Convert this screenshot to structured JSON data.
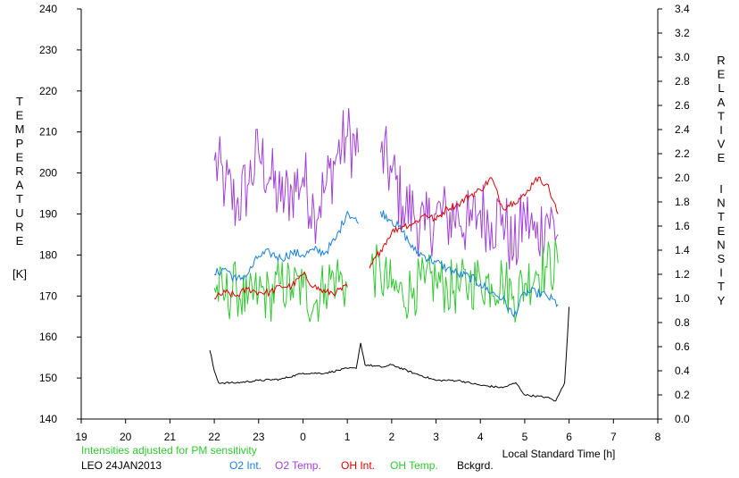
{
  "chart_data": {
    "type": "line",
    "title": "",
    "left_axis": {
      "label_letters": [
        "T",
        "E",
        "M",
        "P",
        "E",
        "R",
        "A",
        "T",
        "U",
        "R",
        "E"
      ],
      "unit": "[K]",
      "ylim": [
        140,
        240
      ],
      "ticks": [
        "140",
        "150",
        "160",
        "170",
        "180",
        "190",
        "200",
        "210",
        "220",
        "230",
        "240"
      ]
    },
    "right_axis": {
      "label_letters_1": [
        "R",
        "E",
        "L",
        "A",
        "T",
        "I",
        "V",
        "E"
      ],
      "label_letters_2": [
        "I",
        "N",
        "T",
        "E",
        "N",
        "S",
        "I",
        "T",
        "Y"
      ],
      "ylim": [
        0.0,
        3.4
      ],
      "ticks": [
        "0.0",
        "0.2",
        "0.4",
        "0.6",
        "0.8",
        "1.0",
        "1.2",
        "1.4",
        "1.6",
        "1.8",
        "2.0",
        "2.2",
        "2.4",
        "2.6",
        "2.8",
        "3.0",
        "3.2",
        "3.4"
      ]
    },
    "x_axis": {
      "label": "Local Standard Time [h]",
      "ticks": [
        "19",
        "20",
        "21",
        "22",
        "23",
        "0",
        "1",
        "2",
        "3",
        "4",
        "5",
        "6",
        "7",
        "8"
      ]
    },
    "note": "Intensities adjusted for PM sensitivity",
    "station": "LEO 24JAN2013",
    "legend": [
      {
        "label": "O2 Int.",
        "color": "#1a7fe0"
      },
      {
        "label": "O2 Temp.",
        "color": "#a040d8"
      },
      {
        "label": "OH Int.",
        "color": "#e00000"
      },
      {
        "label": "OH Temp.",
        "color": "#30c830"
      },
      {
        "label": "Bckgrd.",
        "color": "#000000"
      }
    ],
    "series": [
      {
        "key": "o2_temp",
        "axis": "left",
        "color": "#a040d8",
        "x": [
          22.0,
          22.25,
          22.5,
          22.75,
          23.0,
          23.25,
          23.5,
          23.75,
          24.0,
          24.25,
          24.5,
          24.75,
          25.0,
          25.25,
          25.5,
          25.75,
          26.0,
          26.25,
          26.5,
          26.75,
          27.0,
          27.25,
          27.5,
          27.75,
          28.0,
          28.25,
          28.5,
          28.75,
          29.0,
          29.25,
          29.5,
          29.75
        ],
        "y": [
          203,
          197,
          192,
          197,
          205,
          199,
          193,
          196,
          199,
          191,
          196,
          204,
          209,
          205,
          null,
          205,
          200,
          192,
          190,
          186,
          190,
          189,
          190,
          187,
          191,
          188,
          190,
          180,
          190,
          184,
          190,
          185
        ]
      },
      {
        "key": "oh_temp",
        "axis": "left",
        "color": "#30c830",
        "x": [
          22.0,
          22.25,
          22.5,
          22.75,
          23.0,
          23.25,
          23.5,
          23.75,
          24.0,
          24.25,
          24.5,
          24.75,
          25.0,
          25.25,
          25.5,
          25.75,
          26.0,
          26.25,
          26.5,
          26.75,
          27.0,
          27.25,
          27.5,
          27.75,
          28.0,
          28.25,
          28.5,
          28.75,
          29.0,
          29.25,
          29.5,
          29.75
        ],
        "y": [
          172,
          170,
          172,
          168,
          171,
          170,
          173,
          172,
          172,
          168,
          173,
          175,
          172,
          null,
          177,
          175,
          172,
          170,
          172,
          173,
          174,
          172,
          172,
          173,
          174,
          173,
          174,
          170,
          173,
          176,
          177,
          178
        ]
      },
      {
        "key": "o2_int",
        "axis": "right",
        "color": "#1a7fe0",
        "x": [
          22.0,
          22.25,
          22.5,
          22.75,
          23.0,
          23.25,
          23.5,
          23.75,
          24.0,
          24.25,
          24.5,
          24.75,
          25.0,
          25.25,
          25.5,
          25.75,
          26.0,
          26.25,
          26.5,
          26.75,
          27.0,
          27.25,
          27.5,
          27.75,
          28.0,
          28.25,
          28.5,
          28.75,
          29.0,
          29.25,
          29.5,
          29.75
        ],
        "y": [
          1.2,
          1.25,
          1.15,
          1.2,
          1.35,
          1.38,
          1.33,
          1.38,
          1.36,
          1.4,
          1.38,
          1.5,
          1.72,
          1.62,
          null,
          1.72,
          1.65,
          1.55,
          1.4,
          1.35,
          1.3,
          1.25,
          1.2,
          1.18,
          1.12,
          1.05,
          1.0,
          0.85,
          1.05,
          1.05,
          1.02,
          0.95
        ]
      },
      {
        "key": "oh_int",
        "axis": "right",
        "color": "#e00000",
        "x": [
          22.0,
          22.25,
          22.5,
          22.75,
          23.0,
          23.25,
          23.5,
          23.75,
          24.0,
          24.25,
          24.5,
          24.75,
          25.0,
          25.25,
          25.5,
          25.75,
          26.0,
          26.25,
          26.5,
          26.75,
          27.0,
          27.25,
          27.5,
          27.75,
          28.0,
          28.25,
          28.5,
          28.75,
          29.0,
          29.25,
          29.5,
          29.75
        ],
        "y": [
          1.0,
          1.05,
          1.02,
          1.08,
          1.05,
          1.05,
          1.1,
          1.1,
          1.2,
          1.1,
          1.05,
          1.05,
          1.1,
          null,
          1.25,
          1.4,
          1.55,
          1.6,
          1.62,
          1.7,
          1.65,
          1.75,
          1.78,
          1.85,
          1.9,
          2.0,
          1.75,
          1.8,
          1.85,
          2.0,
          1.95,
          1.7
        ]
      },
      {
        "key": "background",
        "axis": "right",
        "color": "#000000",
        "x": [
          21.9,
          22.0,
          22.1,
          22.5,
          23.0,
          23.5,
          24.0,
          24.5,
          25.0,
          25.2,
          25.3,
          25.4,
          25.8,
          26.0,
          26.5,
          27.0,
          27.5,
          28.0,
          28.5,
          28.8,
          29.0,
          29.5,
          29.7,
          29.9,
          30.0
        ],
        "y": [
          0.57,
          0.4,
          0.3,
          0.3,
          0.32,
          0.33,
          0.38,
          0.38,
          0.42,
          0.42,
          0.63,
          0.45,
          0.43,
          0.45,
          0.38,
          0.32,
          0.32,
          0.28,
          0.26,
          0.3,
          0.2,
          0.18,
          0.15,
          0.3,
          0.93
        ]
      }
    ]
  }
}
